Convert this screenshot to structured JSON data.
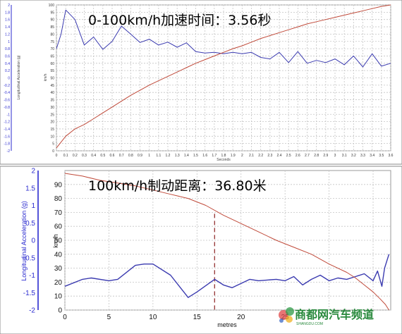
{
  "watermark": {
    "text": "商都网汽车频道",
    "sub": "SHANGDU.COM"
  },
  "chart_data": [
    {
      "type": "line",
      "title": "0-100km/h加速时间：3.56秒",
      "xlabel": "Seconds",
      "ylabel_left": "Longitudinal Acceleration (g)",
      "ylabel_right": "km/h",
      "xlim": [
        0,
        3.6
      ],
      "ylim_left": [
        -2,
        2
      ],
      "ylim_right": [
        0,
        100
      ],
      "x_ticks": [
        "0",
        "0.1",
        "0.2",
        "0.3",
        "0.4",
        "0.5",
        "0.6",
        "0.7",
        "0.8",
        "0.9",
        "1",
        "1.1",
        "1.2",
        "1.3",
        "1.4",
        "1.5",
        "1.6",
        "1.7",
        "1.8",
        "1.9",
        "2",
        "2.1",
        "2.2",
        "2.3",
        "2.4",
        "2.5",
        "2.6",
        "2.7",
        "2.8",
        "2.9",
        "3",
        "3.1",
        "3.2",
        "3.3",
        "3.4",
        "3.5",
        "3.6"
      ],
      "left_ticks": [
        "2",
        "1.8",
        "1.6",
        "1.4",
        "1.2",
        "1",
        "0.8",
        "0.6",
        "0.4",
        "0.2",
        "0",
        "-0.2",
        "-0.4",
        "-0.6",
        "-0.8",
        "-1",
        "-1.2",
        "-1.4",
        "-1.6",
        "-1.8",
        "-2"
      ],
      "right_ticks": [
        "100",
        "95",
        "90",
        "85",
        "80",
        "75",
        "70",
        "65",
        "60",
        "55",
        "50",
        "45",
        "40",
        "35",
        "30",
        "25",
        "20",
        "15",
        "10",
        "5",
        "0"
      ],
      "grid": true,
      "series": [
        {
          "axis": "left",
          "color": "#3b3bb0",
          "x": [
            0,
            0.05,
            0.1,
            0.2,
            0.3,
            0.4,
            0.5,
            0.6,
            0.7,
            0.8,
            0.9,
            1.0,
            1.1,
            1.2,
            1.3,
            1.4,
            1.5,
            1.6,
            1.7,
            1.8,
            1.9,
            2.0,
            2.1,
            2.2,
            2.3,
            2.4,
            2.5,
            2.6,
            2.7,
            2.8,
            2.9,
            3.0,
            3.1,
            3.2,
            3.3,
            3.4,
            3.5,
            3.6
          ],
          "y": [
            0.8,
            1.2,
            1.86,
            1.6,
            0.9,
            1.12,
            0.78,
            1.0,
            1.42,
            1.2,
            0.97,
            1.06,
            0.9,
            0.98,
            0.84,
            0.96,
            0.72,
            0.68,
            0.7,
            0.66,
            0.7,
            0.66,
            0.7,
            0.56,
            0.52,
            0.7,
            0.42,
            0.72,
            0.4,
            0.48,
            0.42,
            0.52,
            0.36,
            0.6,
            0.3,
            0.66,
            0.32,
            0.4
          ]
        },
        {
          "axis": "right",
          "color": "#c04a3a",
          "x": [
            0,
            0.1,
            0.2,
            0.3,
            0.4,
            0.5,
            0.6,
            0.7,
            0.8,
            0.9,
            1.0,
            1.1,
            1.2,
            1.3,
            1.4,
            1.5,
            1.6,
            1.7,
            1.8,
            1.9,
            2.0,
            2.1,
            2.2,
            2.3,
            2.4,
            2.5,
            2.6,
            2.7,
            2.8,
            2.9,
            3.0,
            3.1,
            3.2,
            3.3,
            3.4,
            3.5,
            3.6
          ],
          "y": [
            2,
            10,
            15,
            18,
            22,
            26,
            30,
            34,
            38,
            41.5,
            45,
            48,
            51,
            54,
            57,
            60,
            62.5,
            65,
            67.5,
            70,
            72,
            74.5,
            77,
            79,
            81,
            83,
            85,
            87,
            88.5,
            90,
            91.5,
            93,
            94.5,
            96,
            97.5,
            99,
            100
          ]
        }
      ]
    },
    {
      "type": "line",
      "title": "100km/h制动距离：36.80米",
      "xlabel": "metres",
      "ylabel_left": "Longitudinal Acceleration (g)",
      "ylabel_right": "km/h",
      "xlim": [
        0,
        37
      ],
      "ylim_left": [
        -2,
        2
      ],
      "ylim_right": [
        0,
        100
      ],
      "x_ticks": [
        "0",
        "5",
        "10",
        "15",
        "20",
        "25"
      ],
      "left_ticks": [
        "2",
        "1.5",
        "1",
        "0.5",
        "0",
        "-0.5",
        "-1",
        "-1.5",
        "-2"
      ],
      "left_tick_values": [
        2,
        1.5,
        1,
        0.5,
        0,
        -0.5,
        -1,
        -1.5,
        -2
      ],
      "right_ticks": [
        "90",
        "80",
        "70",
        "60",
        "50",
        "40",
        "30",
        "20",
        "10",
        "0"
      ],
      "right_tick_values": [
        90,
        80,
        70,
        60,
        50,
        40,
        30,
        20,
        10,
        0
      ],
      "marker_x": 17,
      "grid": true,
      "series": [
        {
          "axis": "right",
          "color": "#3b3bb0",
          "x": [
            0,
            2,
            3,
            5,
            6,
            8,
            9,
            10,
            12,
            14,
            15,
            17,
            18,
            19,
            21,
            22,
            24,
            25,
            26,
            27,
            28,
            29,
            30,
            31,
            32,
            33,
            34,
            35,
            35.5,
            36,
            36.3,
            36.8
          ],
          "y": [
            17,
            22,
            23,
            21,
            22,
            32,
            33,
            33,
            25,
            9,
            13,
            22,
            18,
            16,
            22,
            21,
            22,
            21,
            24,
            18,
            22,
            25,
            21,
            23,
            22,
            24,
            26,
            21,
            28,
            17,
            30,
            40
          ]
        },
        {
          "axis": "right",
          "color": "#c04a3a",
          "x": [
            0,
            2,
            4,
            6,
            8,
            10,
            12,
            14,
            16,
            18,
            20,
            22,
            24,
            26,
            28,
            30,
            32,
            33,
            34,
            35,
            35.8,
            36.4,
            36.8
          ],
          "y": [
            98,
            96,
            93,
            91,
            89,
            86,
            83,
            80,
            75,
            68,
            62,
            56,
            50,
            45,
            40,
            33,
            27,
            23,
            18,
            13,
            8,
            4,
            0
          ]
        }
      ]
    }
  ]
}
